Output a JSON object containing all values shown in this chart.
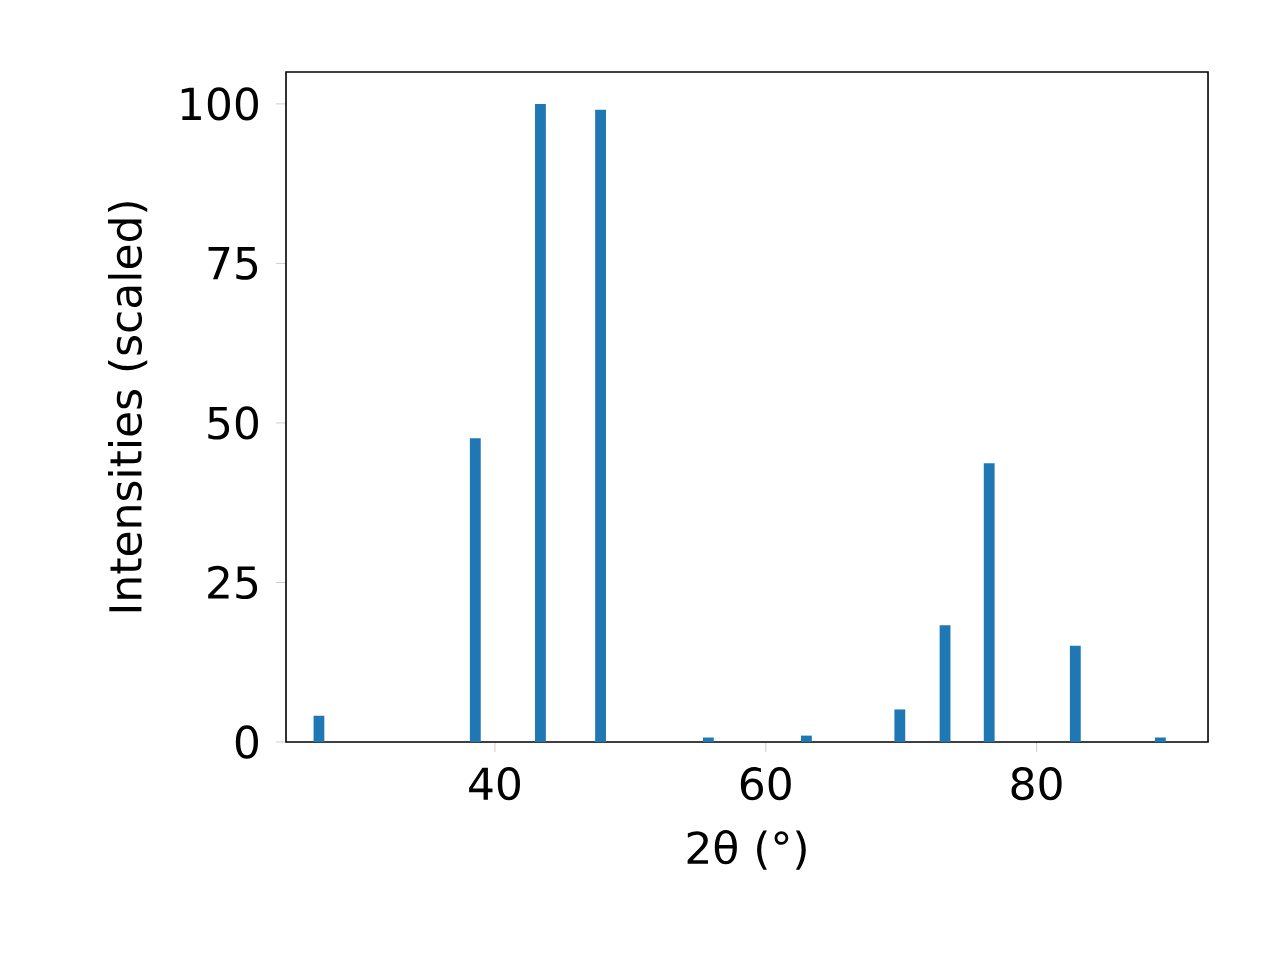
{
  "chart_data": {
    "type": "bar",
    "xlabel": "2θ (°)",
    "ylabel": "Intensities (scaled)",
    "x": [
      27.0,
      38.55,
      43.36,
      47.8,
      55.76,
      63.0,
      69.9,
      73.24,
      76.5,
      82.86,
      89.14
    ],
    "values": [
      4.1,
      47.6,
      100,
      99.1,
      0.7,
      1.0,
      5.1,
      18.3,
      43.7,
      15.1,
      0.7
    ],
    "color": "#1f77b4",
    "xlim": [
      24.57,
      92.66
    ],
    "ylim": [
      0,
      105
    ],
    "xticks": [
      40,
      60,
      80
    ],
    "yticks": [
      0,
      25,
      50,
      75,
      100
    ]
  }
}
